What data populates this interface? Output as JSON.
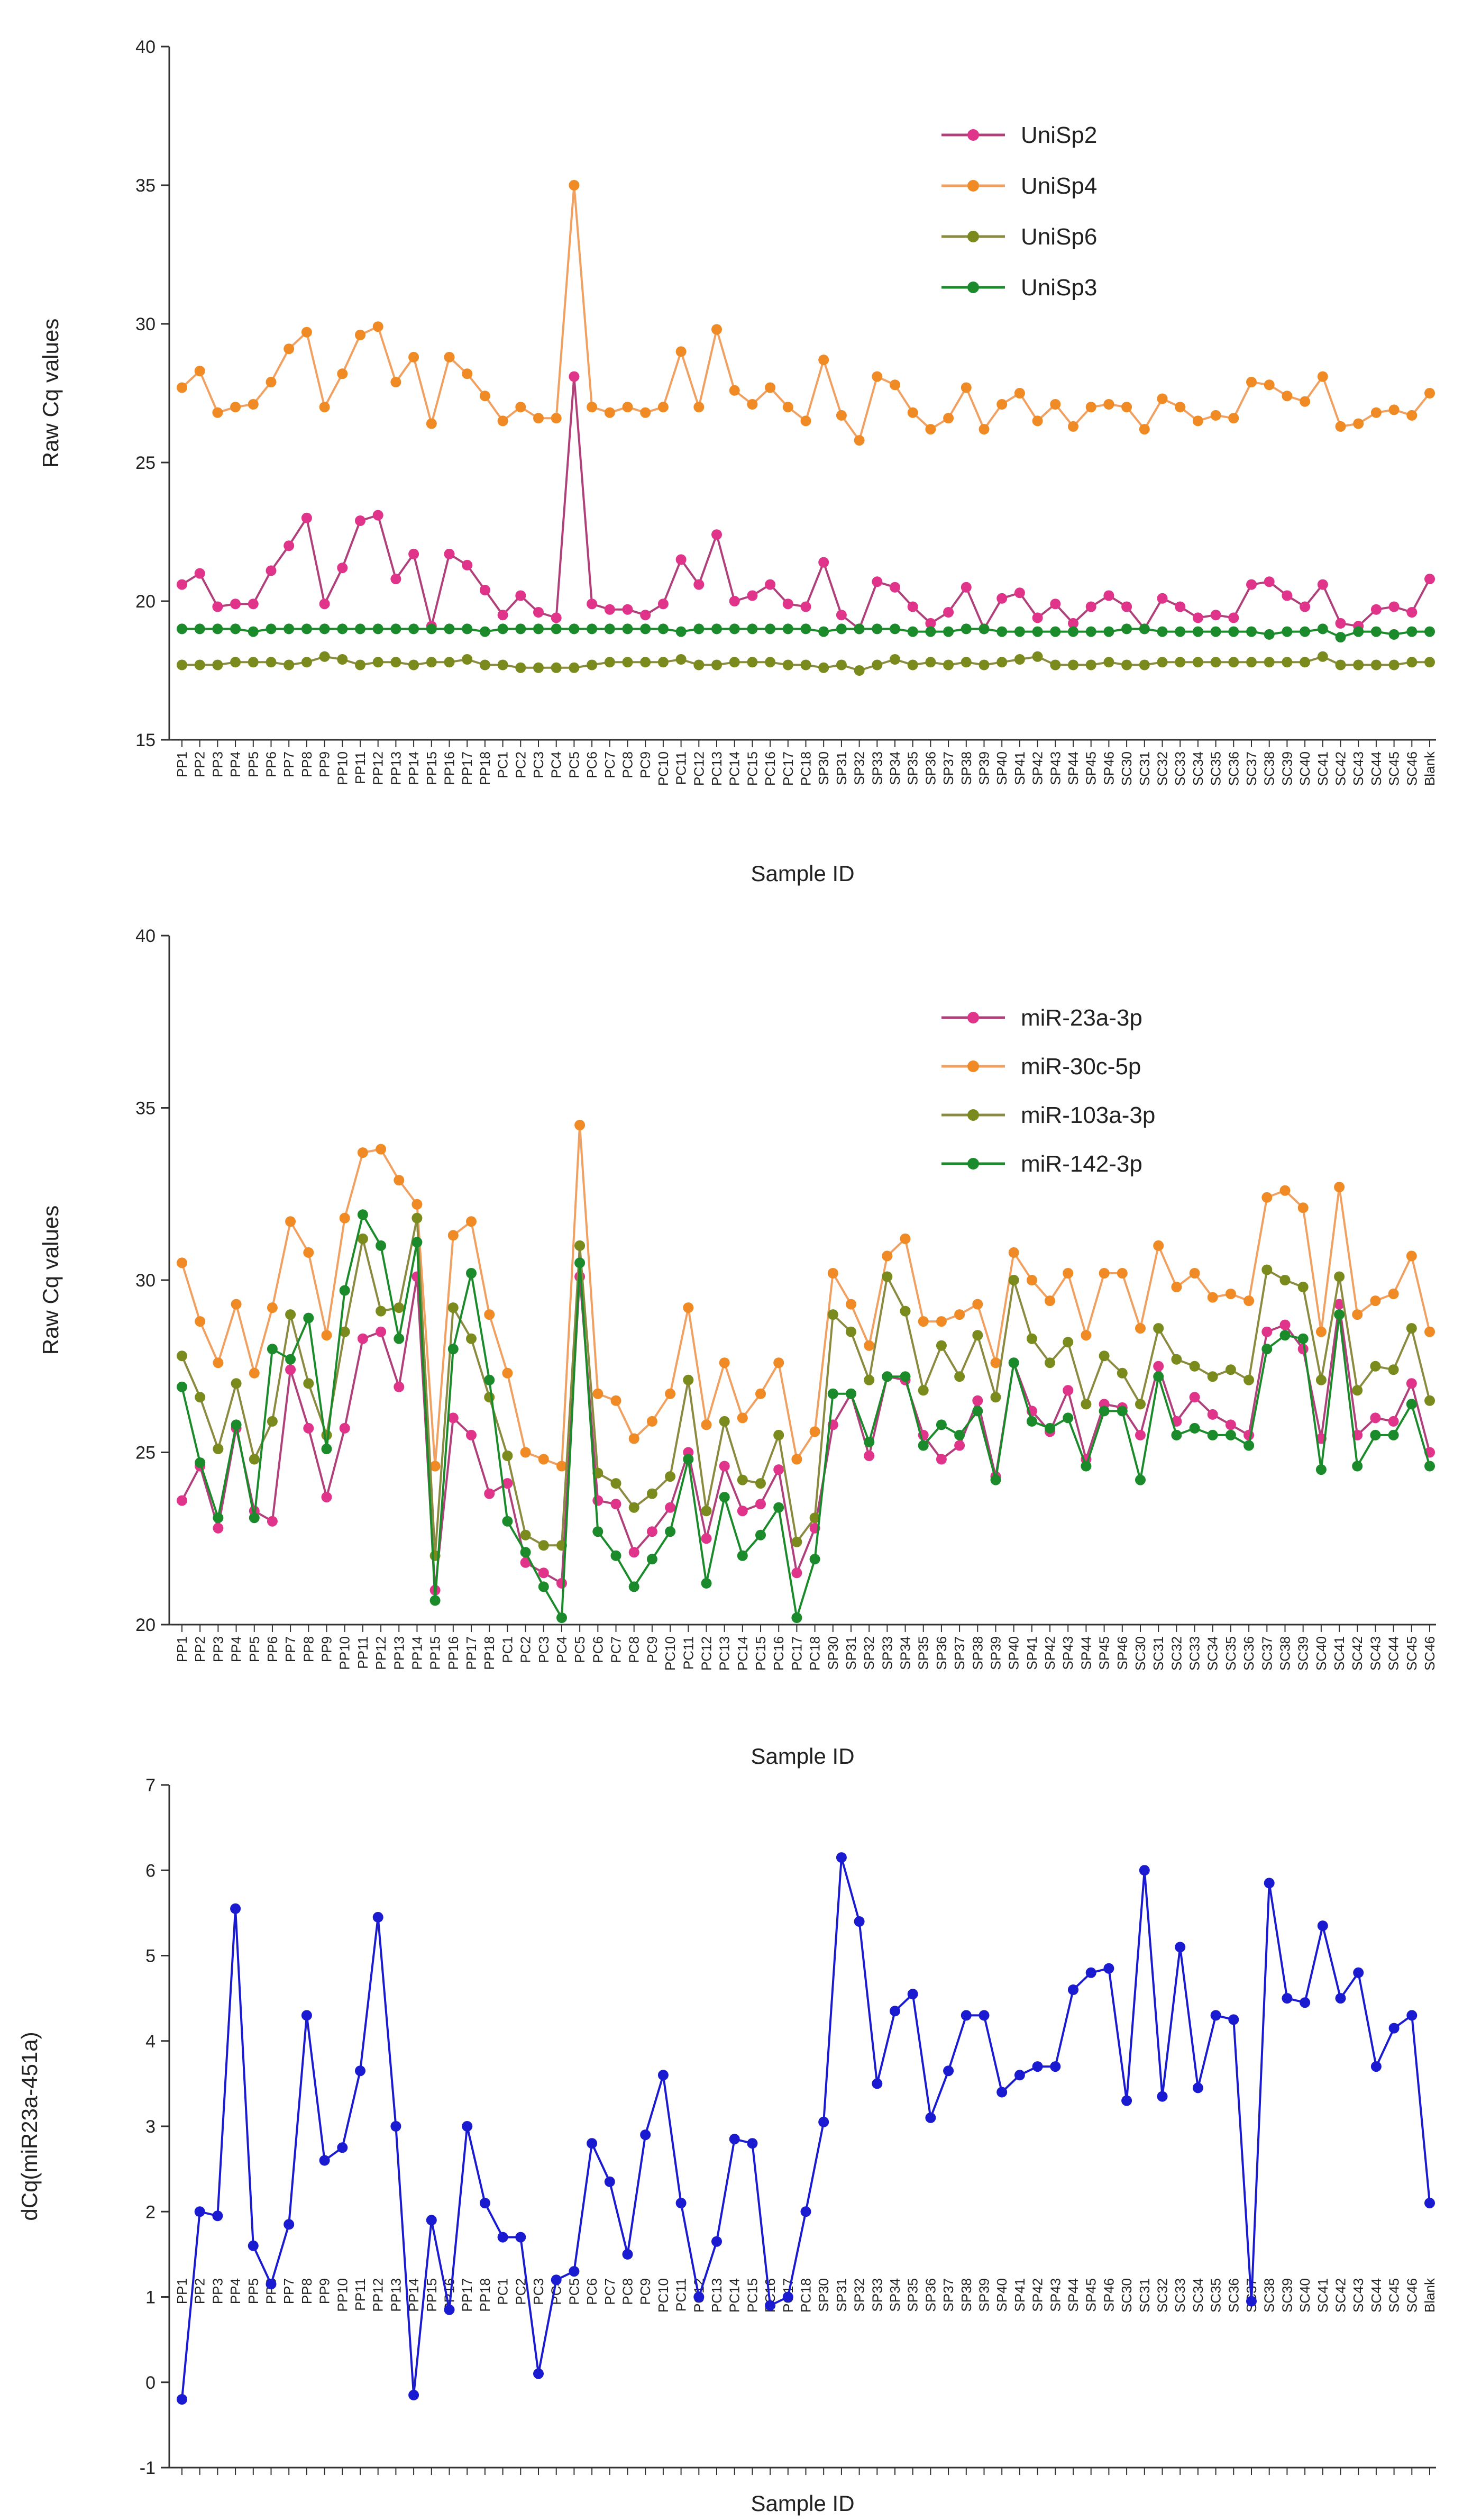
{
  "figure_name": "miRNA Cq value panels",
  "chart_data": [
    {
      "type": "line",
      "ylabel": "Raw Cq values",
      "xlabel": "Sample ID",
      "ylim": [
        15,
        40
      ],
      "yticks": [
        15,
        20,
        25,
        30,
        35,
        40
      ],
      "legend_position": "top-right",
      "categories": [
        "PP1",
        "PP2",
        "PP3",
        "PP4",
        "PP5",
        "PP6",
        "PP7",
        "PP8",
        "PP9",
        "PP10",
        "PP11",
        "PP12",
        "PP13",
        "PP14",
        "PP15",
        "PP16",
        "PP17",
        "PP18",
        "PC1",
        "PC2",
        "PC3",
        "PC4",
        "PC5",
        "PC6",
        "PC7",
        "PC8",
        "PC9",
        "PC10",
        "PC11",
        "PC12",
        "PC13",
        "PC14",
        "PC15",
        "PC16",
        "PC17",
        "PC18",
        "SP30",
        "SP31",
        "SP32",
        "SP33",
        "SP34",
        "SP35",
        "SP36",
        "SP37",
        "SP38",
        "SP39",
        "SP40",
        "SP41",
        "SP42",
        "SP43",
        "SP44",
        "SP45",
        "SP46",
        "SC30",
        "SC31",
        "SC32",
        "SC33",
        "SC34",
        "SC35",
        "SC36",
        "SC37",
        "SC38",
        "SC39",
        "SC40",
        "SC41",
        "SC42",
        "SC43",
        "SC44",
        "SC45",
        "SC46",
        "Blank"
      ],
      "series": [
        {
          "name": "UniSp2",
          "color": "#e0338a",
          "line_color": "#b0407a",
          "values": [
            20.6,
            21.0,
            19.8,
            19.9,
            19.9,
            21.1,
            22.0,
            23.0,
            19.9,
            21.2,
            22.9,
            23.1,
            20.8,
            21.7,
            19.1,
            21.7,
            21.3,
            20.4,
            19.5,
            20.2,
            19.6,
            19.4,
            28.1,
            19.9,
            19.7,
            19.7,
            19.5,
            19.9,
            21.5,
            20.6,
            22.4,
            20.0,
            20.2,
            20.6,
            19.9,
            19.8,
            21.4,
            19.5,
            19.0,
            20.7,
            20.5,
            19.8,
            19.2,
            19.6,
            20.5,
            19.0,
            20.1,
            20.3,
            19.4,
            19.9,
            19.2,
            19.8,
            20.2,
            19.8,
            19.0,
            20.1,
            19.8,
            19.4,
            19.5,
            19.4,
            20.6,
            20.7,
            20.2,
            19.8,
            20.6,
            19.2,
            19.1,
            19.7,
            19.8,
            19.6,
            20.8
          ]
        },
        {
          "name": "UniSp4",
          "color": "#f08a24",
          "line_color": "#f0a060",
          "values": [
            27.7,
            28.3,
            26.8,
            27.0,
            27.1,
            27.9,
            29.1,
            29.7,
            27.0,
            28.2,
            29.6,
            29.9,
            27.9,
            28.8,
            26.4,
            28.8,
            28.2,
            27.4,
            26.5,
            27.0,
            26.6,
            26.6,
            35.0,
            27.0,
            26.8,
            27.0,
            26.8,
            27.0,
            29.0,
            27.0,
            29.8,
            27.6,
            27.1,
            27.7,
            27.0,
            26.5,
            28.7,
            26.7,
            25.8,
            28.1,
            27.8,
            26.8,
            26.2,
            26.6,
            27.7,
            26.2,
            27.1,
            27.5,
            26.5,
            27.1,
            26.3,
            27.0,
            27.1,
            27.0,
            26.2,
            27.3,
            27.0,
            26.5,
            26.7,
            26.6,
            27.9,
            27.8,
            27.4,
            27.2,
            28.1,
            26.3,
            26.4,
            26.8,
            26.9,
            26.7,
            27.5
          ]
        },
        {
          "name": "UniSp6",
          "color": "#7a8a1c",
          "line_color": "#8a8a40",
          "values": [
            17.7,
            17.7,
            17.7,
            17.8,
            17.8,
            17.8,
            17.7,
            17.8,
            18.0,
            17.9,
            17.7,
            17.8,
            17.8,
            17.7,
            17.8,
            17.8,
            17.9,
            17.7,
            17.7,
            17.6,
            17.6,
            17.6,
            17.6,
            17.7,
            17.8,
            17.8,
            17.8,
            17.8,
            17.9,
            17.7,
            17.7,
            17.8,
            17.8,
            17.8,
            17.7,
            17.7,
            17.6,
            17.7,
            17.5,
            17.7,
            17.9,
            17.7,
            17.8,
            17.7,
            17.8,
            17.7,
            17.8,
            17.9,
            18.0,
            17.7,
            17.7,
            17.7,
            17.8,
            17.7,
            17.7,
            17.8,
            17.8,
            17.8,
            17.8,
            17.8,
            17.8,
            17.8,
            17.8,
            17.8,
            18.0,
            17.7,
            17.7,
            17.7,
            17.7,
            17.8,
            17.8
          ]
        },
        {
          "name": "UniSp3",
          "color": "#1a8a2a",
          "line_color": "#1a8a2a",
          "values": [
            19.0,
            19.0,
            19.0,
            19.0,
            18.9,
            19.0,
            19.0,
            19.0,
            19.0,
            19.0,
            19.0,
            19.0,
            19.0,
            19.0,
            19.0,
            19.0,
            19.0,
            18.9,
            19.0,
            19.0,
            19.0,
            19.0,
            19.0,
            19.0,
            19.0,
            19.0,
            19.0,
            19.0,
            18.9,
            19.0,
            19.0,
            19.0,
            19.0,
            19.0,
            19.0,
            19.0,
            18.9,
            19.0,
            19.0,
            19.0,
            19.0,
            18.9,
            18.9,
            18.9,
            19.0,
            19.0,
            18.9,
            18.9,
            18.9,
            18.9,
            18.9,
            18.9,
            18.9,
            19.0,
            19.0,
            18.9,
            18.9,
            18.9,
            18.9,
            18.9,
            18.9,
            18.8,
            18.9,
            18.9,
            19.0,
            18.7,
            18.9,
            18.9,
            18.8,
            18.9,
            18.9
          ]
        }
      ]
    },
    {
      "type": "line",
      "ylabel": "Raw Cq values",
      "xlabel": "Sample ID",
      "ylim": [
        20,
        40
      ],
      "yticks": [
        20,
        25,
        30,
        35,
        40
      ],
      "legend_position": "top-right",
      "categories": [
        "PP1",
        "PP2",
        "PP3",
        "PP4",
        "PP5",
        "PP6",
        "PP7",
        "PP8",
        "PP9",
        "PP10",
        "PP11",
        "PP12",
        "PP13",
        "PP14",
        "PP15",
        "PP16",
        "PP17",
        "PP18",
        "PC1",
        "PC2",
        "PC3",
        "PC4",
        "PC5",
        "PC6",
        "PC7",
        "PC8",
        "PC9",
        "PC10",
        "PC11",
        "PC12",
        "PC13",
        "PC14",
        "PC15",
        "PC16",
        "PC17",
        "PC18",
        "SP30",
        "SP31",
        "SP32",
        "SP33",
        "SP34",
        "SP35",
        "SP36",
        "SP37",
        "SP38",
        "SP39",
        "SP40",
        "SP41",
        "SP42",
        "SP43",
        "SP44",
        "SP45",
        "SP46",
        "SC30",
        "SC31",
        "SC32",
        "SC33",
        "SC34",
        "SC35",
        "SC36",
        "SC37",
        "SC38",
        "SC39",
        "SC40",
        "SC41",
        "SC42",
        "SC43",
        "SC44",
        "SC45",
        "SC46"
      ],
      "series": [
        {
          "name": "miR-23a-3p",
          "color": "#e0338a",
          "line_color": "#b0407a",
          "values": [
            23.6,
            24.6,
            22.8,
            25.7,
            23.3,
            23.0,
            27.4,
            25.7,
            23.7,
            25.7,
            28.3,
            28.5,
            26.9,
            30.1,
            21.0,
            26.0,
            25.5,
            23.8,
            24.1,
            21.8,
            21.5,
            21.2,
            30.1,
            23.6,
            23.5,
            22.1,
            22.7,
            23.4,
            25.0,
            22.5,
            24.6,
            23.3,
            23.5,
            24.5,
            21.5,
            22.8,
            25.8,
            26.7,
            24.9,
            27.2,
            27.1,
            25.5,
            24.8,
            25.2,
            26.5,
            24.3,
            27.6,
            26.2,
            25.6,
            26.8,
            24.8,
            26.4,
            26.3,
            25.5,
            27.5,
            25.9,
            26.6,
            26.1,
            25.8,
            25.5,
            28.5,
            28.7,
            28.0,
            25.4,
            29.3,
            25.5,
            26.0,
            25.9,
            27.0,
            25.0
          ]
        },
        {
          "name": "miR-30c-5p",
          "color": "#f08a24",
          "line_color": "#f0a060",
          "values": [
            30.5,
            28.8,
            27.6,
            29.3,
            27.3,
            29.2,
            31.7,
            30.8,
            28.4,
            31.8,
            33.7,
            33.8,
            32.9,
            32.2,
            24.6,
            31.3,
            31.7,
            29.0,
            27.3,
            25.0,
            24.8,
            24.6,
            34.5,
            26.7,
            26.5,
            25.4,
            25.9,
            26.7,
            29.2,
            25.8,
            27.6,
            26.0,
            26.7,
            27.6,
            24.8,
            25.6,
            30.2,
            29.3,
            28.1,
            30.7,
            31.2,
            28.8,
            28.8,
            29.0,
            29.3,
            27.6,
            30.8,
            30.0,
            29.4,
            30.2,
            28.4,
            30.2,
            30.2,
            28.6,
            31.0,
            29.8,
            30.2,
            29.5,
            29.6,
            29.4,
            32.4,
            32.6,
            32.1,
            28.5,
            32.7,
            29.0,
            29.4,
            29.6,
            30.7,
            28.5
          ]
        },
        {
          "name": "miR-103a-3p",
          "color": "#7a8a1c",
          "line_color": "#8a8a40",
          "values": [
            27.8,
            26.6,
            25.1,
            27.0,
            24.8,
            25.9,
            29.0,
            27.0,
            25.5,
            28.5,
            31.2,
            29.1,
            29.2,
            31.8,
            22.0,
            29.2,
            28.3,
            26.6,
            24.9,
            22.6,
            22.3,
            22.3,
            31.0,
            24.4,
            24.1,
            23.4,
            23.8,
            24.3,
            27.1,
            23.3,
            25.9,
            24.2,
            24.1,
            25.5,
            22.4,
            23.1,
            29.0,
            28.5,
            27.1,
            30.1,
            29.1,
            26.8,
            28.1,
            27.2,
            28.4,
            26.6,
            30.0,
            28.3,
            27.6,
            28.2,
            26.4,
            27.8,
            27.3,
            26.4,
            28.6,
            27.7,
            27.5,
            27.2,
            27.4,
            27.1,
            30.3,
            30.0,
            29.8,
            27.1,
            30.1,
            26.8,
            27.5,
            27.4,
            28.6,
            26.5
          ]
        },
        {
          "name": "miR-142-3p",
          "color": "#1a8a2a",
          "line_color": "#1a8a2a",
          "values": [
            26.9,
            24.7,
            23.1,
            25.8,
            23.1,
            28.0,
            27.7,
            28.9,
            25.1,
            29.7,
            31.9,
            31.0,
            28.3,
            31.1,
            20.7,
            28.0,
            30.2,
            27.1,
            23.0,
            22.1,
            21.1,
            20.2,
            30.5,
            22.7,
            22.0,
            21.1,
            21.9,
            22.7,
            24.8,
            21.2,
            23.7,
            22.0,
            22.6,
            23.4,
            20.2,
            21.9,
            26.7,
            26.7,
            25.3,
            27.2,
            27.2,
            25.2,
            25.8,
            25.5,
            26.2,
            24.2,
            27.6,
            25.9,
            25.7,
            26.0,
            24.6,
            26.2,
            26.2,
            24.2,
            27.2,
            25.5,
            25.7,
            25.5,
            25.5,
            25.2,
            28.0,
            28.4,
            28.3,
            24.5,
            29.0,
            24.6,
            25.5,
            25.5,
            26.4,
            24.6
          ]
        }
      ]
    },
    {
      "type": "line",
      "ylabel": "dCq(miR23a-451a)",
      "xlabel": "Sample ID",
      "ylim": [
        -1,
        7
      ],
      "yticks": [
        -1,
        0,
        1,
        2,
        3,
        4,
        5,
        6,
        7
      ],
      "legend_position": "none",
      "categories": [
        "PP1",
        "PP2",
        "PP3",
        "PP4",
        "PP5",
        "PP6",
        "PP7",
        "PP8",
        "PP9",
        "PP10",
        "PP11",
        "PP12",
        "PP13",
        "PP14",
        "PP15",
        "PP16",
        "PP17",
        "PP18",
        "PC1",
        "PC2",
        "PC3",
        "PC4",
        "PC5",
        "PC6",
        "PC7",
        "PC8",
        "PC9",
        "PC10",
        "PC11",
        "PC12",
        "PC13",
        "PC14",
        "PC15",
        "PC16",
        "PC17",
        "PC18",
        "SP30",
        "SP31",
        "SP32",
        "SP33",
        "SP34",
        "SP35",
        "SP36",
        "SP37",
        "SP38",
        "SP39",
        "SP40",
        "SP41",
        "SP42",
        "SP43",
        "SP44",
        "SP45",
        "SP46",
        "SC30",
        "SC31",
        "SC32",
        "SC33",
        "SC34",
        "SC35",
        "SC36",
        "SC37",
        "SC38",
        "SC39",
        "SC40",
        "SC41",
        "SC42",
        "SC43",
        "SC44",
        "SC45",
        "SC46",
        "Blank"
      ],
      "series": [
        {
          "name": "dCq(miR23a-451a)",
          "color": "#1a1ad0",
          "line_color": "#1a1ad0",
          "values": [
            -0.2,
            2.0,
            1.95,
            5.55,
            1.6,
            1.15,
            1.85,
            4.3,
            2.6,
            2.75,
            3.65,
            5.45,
            3.0,
            -0.15,
            1.9,
            0.85,
            3.0,
            2.1,
            1.7,
            1.7,
            0.1,
            1.2,
            1.3,
            2.8,
            2.35,
            1.5,
            2.9,
            3.6,
            2.1,
            1.0,
            1.65,
            2.85,
            2.8,
            0.9,
            1.0,
            2.0,
            3.05,
            6.15,
            5.4,
            3.5,
            4.35,
            4.55,
            3.1,
            3.65,
            4.3,
            4.3,
            3.4,
            3.6,
            3.7,
            3.7,
            4.6,
            4.8,
            4.85,
            3.3,
            6.0,
            3.35,
            5.1,
            3.45,
            4.3,
            4.25,
            0.95,
            5.85,
            4.5,
            4.45,
            5.35,
            4.5,
            4.8,
            3.7,
            4.15,
            4.3,
            2.1
          ]
        }
      ]
    }
  ]
}
